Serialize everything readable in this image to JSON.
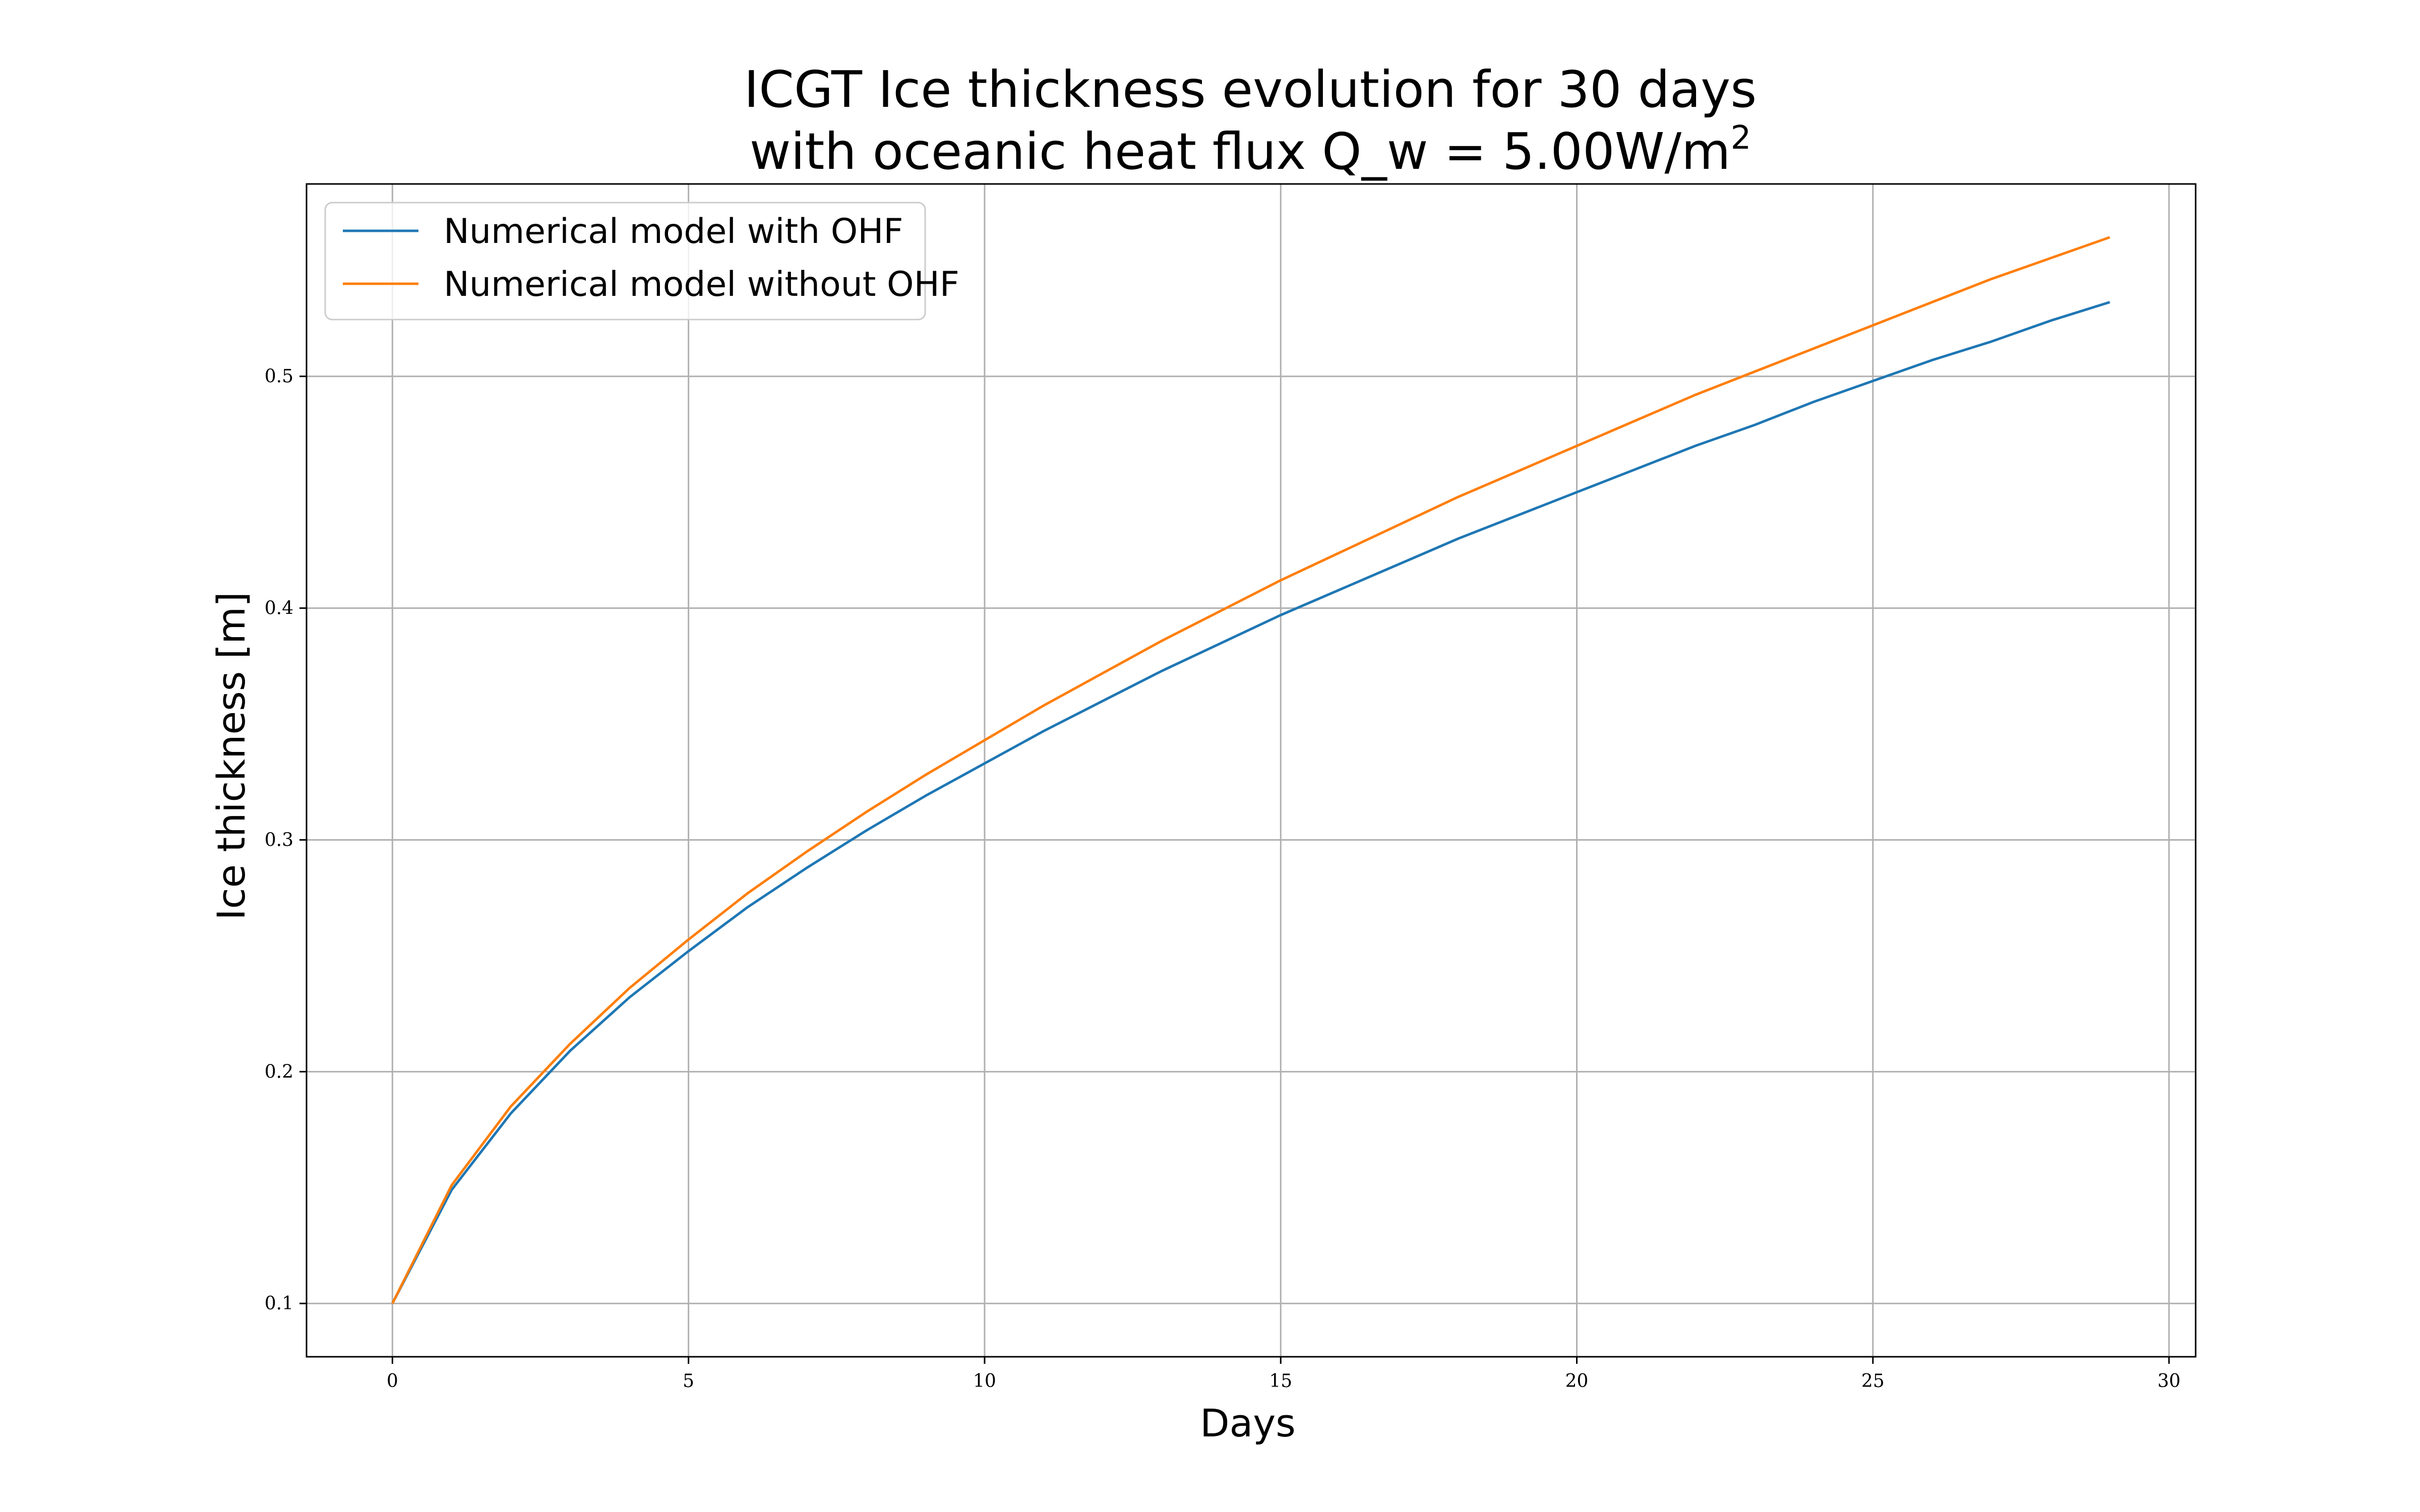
{
  "chart_data": {
    "type": "line",
    "title_line1": "ICGT Ice thickness evolution for 30 days",
    "title_line2_prefix": "with oceanic heat flux Q_w = 5.00W/m",
    "title_line2_sup": "2",
    "xlabel": "Days",
    "ylabel": "Ice thickness [m]",
    "xlim": [
      -1.45,
      30.45
    ],
    "ylim": [
      0.077,
      0.583
    ],
    "xticks": [
      0,
      5,
      10,
      15,
      20,
      25,
      30
    ],
    "yticks": [
      0.1,
      0.2,
      0.3,
      0.4,
      0.5
    ],
    "xtick_labels": [
      "0",
      "5",
      "10",
      "15",
      "20",
      "25",
      "30"
    ],
    "ytick_labels": [
      "0.1",
      "0.2",
      "0.3",
      "0.4",
      "0.5"
    ],
    "grid": true,
    "legend_position": "top-left",
    "x": [
      0,
      1,
      2,
      3,
      4,
      5,
      6,
      7,
      8,
      9,
      10,
      11,
      12,
      13,
      14,
      15,
      16,
      17,
      18,
      19,
      20,
      21,
      22,
      23,
      24,
      25,
      26,
      27,
      28,
      29
    ],
    "series": [
      {
        "name": "Numerical model with OHF",
        "color": "#1f77b4",
        "values": [
          0.1,
          0.149,
          0.182,
          0.209,
          0.232,
          0.252,
          0.271,
          0.288,
          0.304,
          0.319,
          0.333,
          0.347,
          0.36,
          0.373,
          0.385,
          0.397,
          0.408,
          0.419,
          0.43,
          0.44,
          0.45,
          0.46,
          0.47,
          0.479,
          0.489,
          0.498,
          0.507,
          0.515,
          0.524,
          0.532
        ]
      },
      {
        "name": "Numerical model without OHF",
        "color": "#ff7f0e",
        "values": [
          0.1,
          0.151,
          0.185,
          0.212,
          0.236,
          0.257,
          0.277,
          0.295,
          0.312,
          0.328,
          0.343,
          0.358,
          0.372,
          0.386,
          0.399,
          0.412,
          0.424,
          0.436,
          0.448,
          0.459,
          0.47,
          0.481,
          0.492,
          0.502,
          0.512,
          0.522,
          0.532,
          0.542,
          0.551,
          0.56
        ]
      }
    ]
  }
}
